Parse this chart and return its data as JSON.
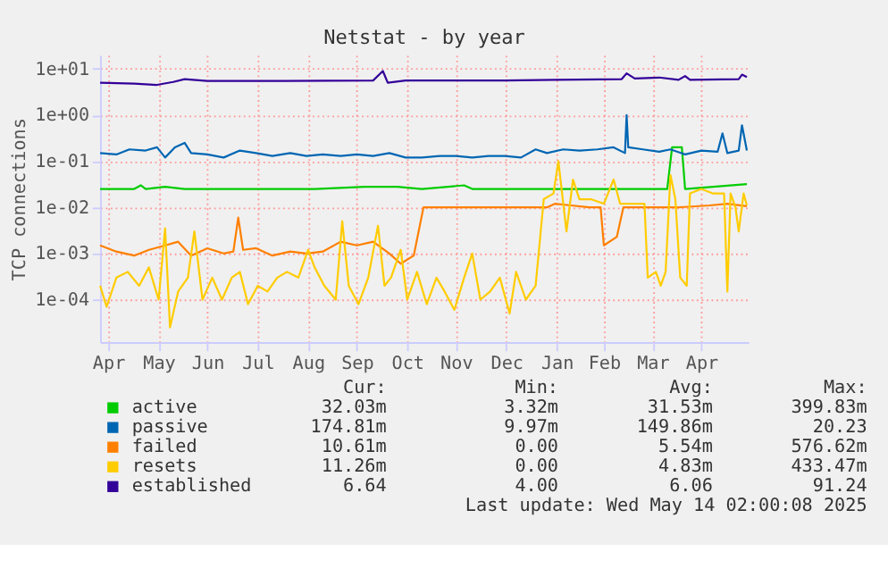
{
  "chart_data": {
    "type": "line",
    "title": "Netstat - by year",
    "ylabel": "TCP connections",
    "log": true,
    "grid": true,
    "legend": "bottom",
    "line_style": "solid",
    "marker": "none",
    "xlim": [
      "2024-04-10",
      "2025-05-14"
    ],
    "xticks": [
      {
        "value": "2024-04-15",
        "label": "Apr"
      },
      {
        "value": "2024-05-16",
        "label": "May"
      },
      {
        "value": "2024-06-15",
        "label": "Jun"
      },
      {
        "value": "2024-07-16",
        "label": "Jul"
      },
      {
        "value": "2024-08-16",
        "label": "Aug"
      },
      {
        "value": "2024-09-15",
        "label": "Sep"
      },
      {
        "value": "2024-10-16",
        "label": "Oct"
      },
      {
        "value": "2024-11-15",
        "label": "Nov"
      },
      {
        "value": "2024-12-16",
        "label": "Dec"
      },
      {
        "value": "2025-01-16",
        "label": "Jan"
      },
      {
        "value": "2025-02-14",
        "label": "Feb"
      },
      {
        "value": "2025-03-16",
        "label": "Mar"
      },
      {
        "value": "2025-04-15",
        "label": "Apr"
      }
    ],
    "ylim": [
      1.2e-05,
      20
    ],
    "yticks": [
      {
        "value": 0.0001,
        "label": "1e-04"
      },
      {
        "value": 0.001,
        "label": "1e-03"
      },
      {
        "value": 0.01,
        "label": "1e-02"
      },
      {
        "value": 0.1,
        "label": "1e-01"
      },
      {
        "value": 1,
        "label": "1e+00"
      },
      {
        "value": 10,
        "label": "1e+01"
      }
    ],
    "series": [
      {
        "name": "active",
        "color": "#00cc00",
        "x": [
          "2024-04-10",
          "2024-05-01",
          "2024-05-05",
          "2024-05-08",
          "2024-05-20",
          "2024-06-01",
          "2024-08-20",
          "2024-09-20",
          "2024-10-10",
          "2024-10-25",
          "2024-11-20",
          "2024-11-25",
          "2025-03-25",
          "2025-03-28",
          "2025-04-03",
          "2025-04-05",
          "2025-05-13"
        ],
        "values": [
          0.025,
          0.025,
          0.03,
          0.025,
          0.028,
          0.025,
          0.025,
          0.028,
          0.028,
          0.025,
          0.03,
          0.025,
          0.025,
          0.2,
          0.2,
          0.025,
          0.032
        ]
      },
      {
        "name": "passive",
        "color": "#0066b3",
        "x": [
          "2024-04-10",
          "2024-04-20",
          "2024-04-28",
          "2024-05-08",
          "2024-05-15",
          "2024-05-20",
          "2024-05-26",
          "2024-06-01",
          "2024-06-05",
          "2024-06-15",
          "2024-06-25",
          "2024-07-05",
          "2024-07-15",
          "2024-07-25",
          "2024-08-05",
          "2024-08-15",
          "2024-08-25",
          "2024-09-05",
          "2024-09-15",
          "2024-09-25",
          "2024-10-05",
          "2024-10-15",
          "2024-10-25",
          "2024-11-05",
          "2024-11-15",
          "2024-11-25",
          "2024-12-05",
          "2024-12-15",
          "2024-12-25",
          "2025-01-03",
          "2025-01-10",
          "2025-01-20",
          "2025-01-30",
          "2025-02-10",
          "2025-02-20",
          "2025-02-27",
          "2025-02-28",
          "2025-03-01",
          "2025-03-10",
          "2025-03-20",
          "2025-03-27",
          "2025-04-05",
          "2025-04-15",
          "2025-04-25",
          "2025-04-28",
          "2025-05-01",
          "2025-05-08",
          "2025-05-10",
          "2025-05-13"
        ],
        "values": [
          0.15,
          0.14,
          0.18,
          0.17,
          0.2,
          0.12,
          0.2,
          0.25,
          0.15,
          0.14,
          0.12,
          0.17,
          0.15,
          0.13,
          0.15,
          0.13,
          0.14,
          0.13,
          0.14,
          0.13,
          0.15,
          0.12,
          0.12,
          0.13,
          0.13,
          0.12,
          0.13,
          0.13,
          0.12,
          0.18,
          0.15,
          0.18,
          0.17,
          0.18,
          0.2,
          0.15,
          1.0,
          0.2,
          0.18,
          0.16,
          0.18,
          0.14,
          0.17,
          0.16,
          0.4,
          0.15,
          0.17,
          0.6,
          0.17
        ]
      },
      {
        "name": "failed",
        "color": "#ff8000",
        "x": [
          "2024-04-10",
          "2024-04-20",
          "2024-05-01",
          "2024-05-10",
          "2024-05-20",
          "2024-05-28",
          "2024-06-05",
          "2024-06-15",
          "2024-06-25",
          "2024-07-01",
          "2024-07-04",
          "2024-07-07",
          "2024-07-15",
          "2024-07-25",
          "2024-08-05",
          "2024-08-15",
          "2024-08-25",
          "2024-09-05",
          "2024-09-15",
          "2024-09-25",
          "2024-10-05",
          "2024-10-12",
          "2024-10-20",
          "2024-10-26",
          "2024-11-15",
          "2024-12-15",
          "2025-01-10",
          "2025-01-15",
          "2025-01-25",
          "2025-02-05",
          "2025-02-12",
          "2025-02-14",
          "2025-02-22",
          "2025-02-26",
          "2025-03-15",
          "2025-04-01",
          "2025-04-20",
          "2025-05-01",
          "2025-05-13"
        ],
        "values": [
          0.0015,
          0.0011,
          0.0009,
          0.0012,
          0.0015,
          0.0018,
          0.0009,
          0.0013,
          0.001,
          0.0011,
          0.006,
          0.0012,
          0.0013,
          0.0009,
          0.0011,
          0.001,
          0.0011,
          0.0018,
          0.0015,
          0.0018,
          0.001,
          0.0006,
          0.0009,
          0.01,
          0.01,
          0.01,
          0.01,
          0.012,
          0.011,
          0.01,
          0.01,
          0.0015,
          0.0023,
          0.01,
          0.01,
          0.01,
          0.011,
          0.012,
          0.0106
        ]
      },
      {
        "name": "resets",
        "color": "#ffcc00",
        "x": [
          "2024-04-10",
          "2024-04-14",
          "2024-04-20",
          "2024-04-27",
          "2024-05-04",
          "2024-05-10",
          "2024-05-16",
          "2024-05-20",
          "2024-05-23",
          "2024-05-28",
          "2024-06-03",
          "2024-06-07",
          "2024-06-12",
          "2024-06-18",
          "2024-06-24",
          "2024-06-30",
          "2024-07-05",
          "2024-07-10",
          "2024-07-16",
          "2024-07-22",
          "2024-07-28",
          "2024-08-03",
          "2024-08-10",
          "2024-08-16",
          "2024-08-20",
          "2024-08-26",
          "2024-09-02",
          "2024-09-06",
          "2024-09-10",
          "2024-09-16",
          "2024-09-22",
          "2024-09-28",
          "2024-10-02",
          "2024-10-06",
          "2024-10-12",
          "2024-10-16",
          "2024-10-22",
          "2024-10-28",
          "2024-11-03",
          "2024-11-08",
          "2024-11-14",
          "2024-11-20",
          "2024-11-25",
          "2024-11-30",
          "2024-12-06",
          "2024-12-12",
          "2024-12-18",
          "2024-12-22",
          "2024-12-28",
          "2025-01-03",
          "2025-01-08",
          "2025-01-14",
          "2025-01-17",
          "2025-01-22",
          "2025-01-26",
          "2025-01-30",
          "2025-02-06",
          "2025-02-14",
          "2025-02-20",
          "2025-02-24",
          "2025-03-04",
          "2025-03-11",
          "2025-03-13",
          "2025-03-18",
          "2025-03-21",
          "2025-03-24",
          "2025-03-27",
          "2025-03-30",
          "2025-04-02",
          "2025-04-06",
          "2025-04-08",
          "2025-04-15",
          "2025-04-22",
          "2025-04-29",
          "2025-05-01",
          "2025-05-03",
          "2025-05-06",
          "2025-05-08",
          "2025-05-11",
          "2025-05-13"
        ],
        "values": [
          0.0002,
          7e-05,
          0.0003,
          0.0004,
          0.0002,
          0.0005,
          0.0001,
          0.0035,
          2.5e-05,
          0.00015,
          0.0003,
          0.003,
          0.0001,
          0.0003,
          0.0001,
          0.0003,
          0.0004,
          8e-05,
          0.0002,
          0.00015,
          0.0003,
          0.0004,
          0.0003,
          0.0012,
          0.0005,
          0.0002,
          0.0001,
          0.005,
          0.0002,
          8e-05,
          0.0003,
          0.004,
          0.0002,
          0.0003,
          0.0012,
          0.0001,
          0.0004,
          8e-05,
          0.0003,
          0.00015,
          6e-05,
          0.0003,
          0.001,
          0.0001,
          0.00015,
          0.0003,
          5e-05,
          0.0004,
          0.0001,
          0.0002,
          0.015,
          0.02,
          0.1,
          0.003,
          0.04,
          0.015,
          0.015,
          0.012,
          0.04,
          0.012,
          0.012,
          0.012,
          0.0003,
          0.0004,
          0.0002,
          0.0004,
          0.05,
          0.015,
          0.0003,
          0.0002,
          0.02,
          0.025,
          0.02,
          0.02,
          0.00015,
          0.02,
          0.01,
          0.003,
          0.02,
          0.011
        ]
      },
      {
        "name": "established",
        "color": "#330099",
        "x": [
          "2024-04-10",
          "2024-05-01",
          "2024-05-15",
          "2024-05-25",
          "2024-06-01",
          "2024-06-15",
          "2024-08-01",
          "2024-09-25",
          "2024-10-01",
          "2024-10-04",
          "2024-10-15",
          "2024-12-15",
          "2025-01-15",
          "2025-02-25",
          "2025-02-28",
          "2025-03-05",
          "2025-03-20",
          "2025-04-01",
          "2025-04-05",
          "2025-04-08",
          "2025-05-08",
          "2025-05-10",
          "2025-05-13"
        ],
        "values": [
          5,
          4.8,
          4.5,
          5.2,
          6,
          5.5,
          5.5,
          5.6,
          9,
          5,
          5.6,
          5.6,
          5.8,
          6,
          8,
          6.2,
          6.5,
          5.8,
          7,
          5.8,
          6,
          7.5,
          6.64
        ]
      }
    ],
    "annotations": [
      "Cur:",
      "Min:",
      "Avg:",
      "Max:",
      "32.03m",
      "3.32m",
      "31.53m",
      "399.83m",
      "174.81m",
      "9.97m",
      "149.86m",
      "20.23",
      "10.61m",
      "0.00",
      "5.54m",
      "576.62m",
      "11.26m",
      "0.00",
      "4.83m",
      "433.47m",
      "6.64",
      "4.00",
      "6.06",
      "91.24",
      "Last update: Wed May 14 02:00:08 2025"
    ]
  }
}
